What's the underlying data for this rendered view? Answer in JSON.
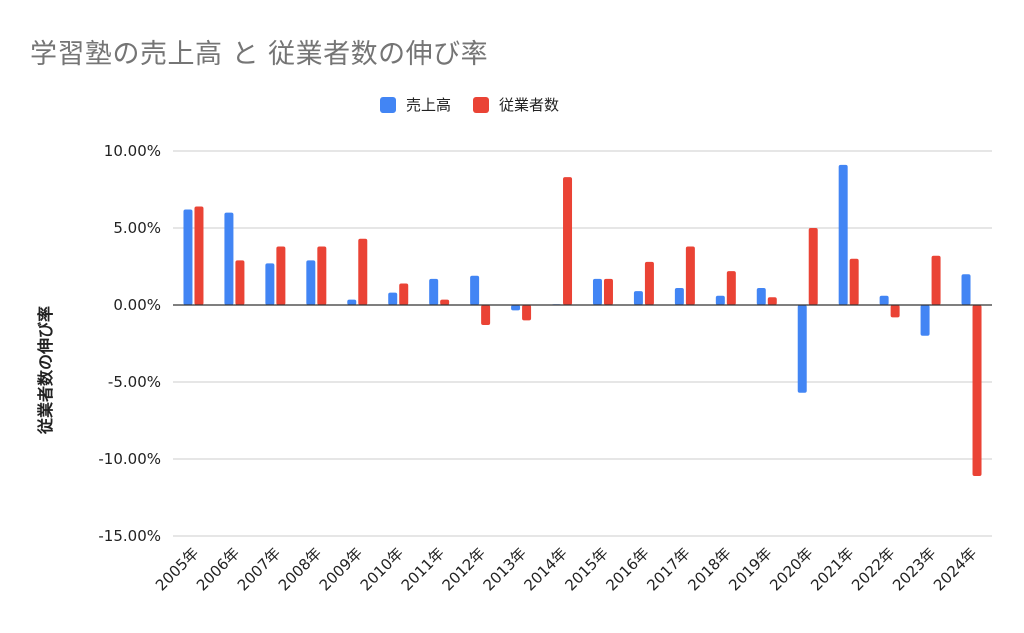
{
  "chart_data": {
    "type": "bar",
    "title": "学習塾の売上高 と 従業者数の伸び率",
    "xlabel": "",
    "ylabel": "従業者数の伸び率",
    "categories": [
      "2005年",
      "2006年",
      "2007年",
      "2008年",
      "2009年",
      "2010年",
      "2011年",
      "2012年",
      "2013年",
      "2014年",
      "2015年",
      "2016年",
      "2017年",
      "2018年",
      "2019年",
      "2020年",
      "2021年",
      "2022年",
      "2023年",
      "2024年"
    ],
    "series": [
      {
        "name": "売上高",
        "color": "#4285f4",
        "values": [
          6.2,
          6.0,
          2.7,
          2.9,
          0.35,
          0.8,
          1.7,
          1.9,
          -0.35,
          0.05,
          1.7,
          0.9,
          1.1,
          0.6,
          1.1,
          -5.7,
          9.1,
          0.6,
          -2.0,
          2.0
        ]
      },
      {
        "name": "従業者数",
        "color": "#ea4335",
        "values": [
          6.4,
          2.9,
          3.8,
          3.8,
          4.3,
          1.4,
          0.35,
          -1.3,
          -1.0,
          8.3,
          1.7,
          2.8,
          3.8,
          2.2,
          0.5,
          5.0,
          3.0,
          -0.8,
          3.2,
          -11.1
        ]
      }
    ],
    "ylim": [
      -15,
      10
    ],
    "yticks": [
      10,
      5,
      0,
      -5,
      -10,
      -15
    ],
    "ytick_labels": [
      "10.00%",
      "5.00%",
      "0.00%",
      "-5.00%",
      "-10.00%",
      "-15.00%"
    ],
    "grid": true,
    "legend_position": "top-center"
  }
}
